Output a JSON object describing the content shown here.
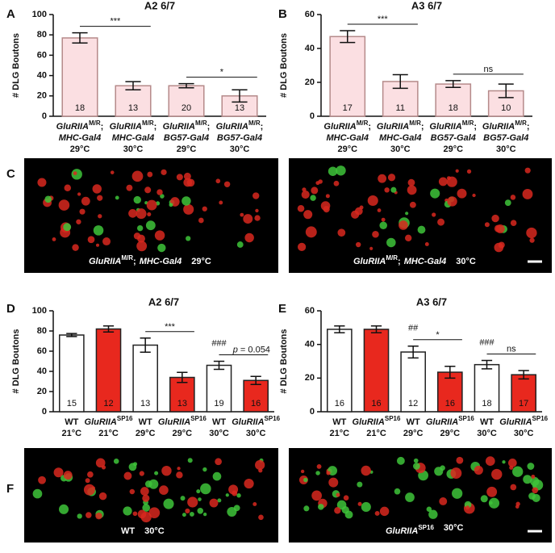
{
  "panel_labels": [
    "A",
    "B",
    "C",
    "D",
    "E",
    "F"
  ],
  "chart_data": [
    {
      "type": "bar",
      "title": "A2 6/7",
      "ylabel": "# DLG Boutons",
      "ylim": [
        0,
        100
      ],
      "yticks": [
        0,
        20,
        40,
        60,
        80,
        100
      ],
      "color": "#fbdfe2",
      "edgecolor": "#b58a8a",
      "categories": [
        {
          "genotype": "GluRIIA",
          "superscript": "M/R",
          "separator": ";",
          "driver": "MHC-Gal4",
          "temp": "29°C"
        },
        {
          "genotype": "GluRIIA",
          "superscript": "M/R",
          "separator": ";",
          "driver": "MHC-Gal4",
          "temp": "30°C"
        },
        {
          "genotype": "GluRIIA",
          "superscript": "M/R",
          "separator": ";",
          "driver": "BG57-Gal4",
          "temp": "29°C"
        },
        {
          "genotype": "GluRIIA",
          "superscript": "M/R",
          "separator": ";",
          "driver": "BG57-Gal4",
          "temp": "30°C"
        }
      ],
      "values": [
        77,
        30,
        30,
        20
      ],
      "errors": [
        5,
        4,
        2,
        6
      ],
      "n": [
        18,
        13,
        20,
        13
      ],
      "brackets": [
        {
          "from": 0,
          "to": 1,
          "label": "***"
        },
        {
          "from": 2,
          "to": 3,
          "label": "*"
        }
      ]
    },
    {
      "type": "bar",
      "title": "A3 6/7",
      "ylabel": "# DLG Boutons",
      "ylim": [
        0,
        60
      ],
      "yticks": [
        0,
        20,
        40,
        60
      ],
      "color": "#fbdfe2",
      "edgecolor": "#b58a8a",
      "categories": [
        {
          "genotype": "GluRIIA",
          "superscript": "M/R",
          "separator": ";",
          "driver": "MHC-Gal4",
          "temp": "29°C"
        },
        {
          "genotype": "GluRIIA",
          "superscript": "M/R",
          "separator": ";",
          "driver": "MHC-Gal4",
          "temp": "30°C"
        },
        {
          "genotype": "GluRIIA",
          "superscript": "M/R",
          "separator": ";",
          "driver": "BG57-Gal4",
          "temp": "29°C"
        },
        {
          "genotype": "GluRIIA",
          "superscript": "M/R",
          "separator": ";",
          "driver": "BG57-Gal4",
          "temp": "30°C"
        }
      ],
      "values": [
        47,
        20.5,
        19,
        15
      ],
      "errors": [
        3.5,
        4,
        2,
        4
      ],
      "n": [
        17,
        11,
        18,
        10
      ],
      "brackets": [
        {
          "from": 0,
          "to": 1,
          "label": "***"
        },
        {
          "from": 2,
          "to": 3,
          "label": "ns"
        }
      ]
    },
    {
      "type": "bar",
      "title": "A2 6/7",
      "ylabel": "# DLG Boutons",
      "ylim": [
        0,
        100
      ],
      "yticks": [
        0,
        20,
        40,
        60,
        80,
        100
      ],
      "edgecolor": "#222222",
      "colors": [
        "#ffffff",
        "#e8281e",
        "#ffffff",
        "#e8281e",
        "#ffffff",
        "#e8281e"
      ],
      "categories": [
        {
          "genotype": "WT",
          "temp": "21°C"
        },
        {
          "genotype": "GluRIIA",
          "superscript": "SP16",
          "temp": "21°C"
        },
        {
          "genotype": "WT",
          "temp": "29°C"
        },
        {
          "genotype": "GluRIIA",
          "superscript": "SP16",
          "temp": "29°C"
        },
        {
          "genotype": "WT",
          "temp": "30°C"
        },
        {
          "genotype": "GluRIIA",
          "superscript": "SP16",
          "temp": "30°C"
        }
      ],
      "values": [
        76,
        82,
        66,
        34,
        46,
        31
      ],
      "errors": [
        1.5,
        3,
        7,
        5,
        4,
        4
      ],
      "n": [
        15,
        12,
        13,
        13,
        19,
        16
      ],
      "marks": [
        {
          "at": 4,
          "label": "###"
        }
      ],
      "brackets": [
        {
          "from": 2,
          "to": 3,
          "label": "***"
        },
        {
          "from": 4,
          "to": 5,
          "prefix": "p",
          "label": "= 0.054"
        }
      ]
    },
    {
      "type": "bar",
      "title": "A3 6/7",
      "ylabel": "# DLG Boutons",
      "ylim": [
        0,
        60
      ],
      "yticks": [
        0,
        20,
        40,
        60
      ],
      "edgecolor": "#222222",
      "colors": [
        "#ffffff",
        "#e8281e",
        "#ffffff",
        "#e8281e",
        "#ffffff",
        "#e8281e"
      ],
      "categories": [
        {
          "genotype": "WT",
          "temp": "21°C"
        },
        {
          "genotype": "GluRIIA",
          "superscript": "SP16",
          "temp": "21°C"
        },
        {
          "genotype": "WT",
          "temp": "29°C"
        },
        {
          "genotype": "GluRIIA",
          "superscript": "SP16",
          "temp": "29°C"
        },
        {
          "genotype": "WT",
          "temp": "30°C"
        },
        {
          "genotype": "GluRIIA",
          "superscript": "SP16",
          "temp": "30°C"
        }
      ],
      "values": [
        49,
        49,
        35.5,
        23.5,
        28,
        22
      ],
      "errors": [
        2,
        2,
        3.5,
        3.5,
        2.5,
        2.5
      ],
      "n": [
        16,
        16,
        12,
        16,
        18,
        17
      ],
      "marks": [
        {
          "at": 2,
          "label": "##"
        },
        {
          "at": 4,
          "label": "###"
        }
      ],
      "brackets": [
        {
          "from": 2,
          "to": 3,
          "label": "*"
        },
        {
          "from": 4,
          "to": 5,
          "label": "ns"
        }
      ]
    }
  ],
  "images": [
    {
      "genotype": "GluRIIA",
      "superscript": "M/R",
      "separator": ";",
      "driver": "MHC-Gal4",
      "temp": "29°C"
    },
    {
      "genotype": "GluRIIA",
      "superscript": "M/R",
      "separator": ";",
      "driver": "MHC-Gal4",
      "temp": "30°C"
    },
    {
      "genotype": "WT",
      "temp": "30°C"
    },
    {
      "genotype": "GluRIIA",
      "superscript": "SP16",
      "temp": "30°C"
    }
  ]
}
